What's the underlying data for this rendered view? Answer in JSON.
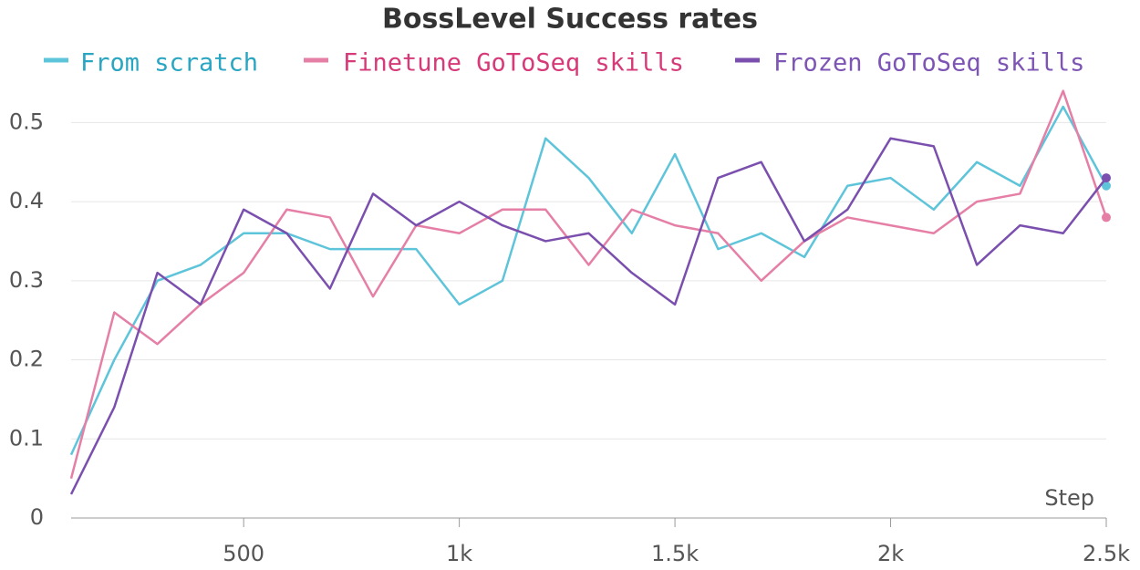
{
  "chart_data": {
    "type": "line",
    "title": "BossLevel Success rates",
    "xlabel": "Step",
    "x": [
      100,
      200,
      300,
      400,
      500,
      600,
      700,
      800,
      900,
      1000,
      1100,
      1200,
      1300,
      1400,
      1500,
      1600,
      1700,
      1800,
      1900,
      2000,
      2100,
      2200,
      2300,
      2400,
      2500
    ],
    "series": [
      {
        "name": "From scratch",
        "color": "#5ec4da",
        "label_color": "#2aa6c2",
        "values": [
          0.08,
          0.2,
          0.3,
          0.32,
          0.36,
          0.36,
          0.34,
          0.34,
          0.34,
          0.27,
          0.3,
          0.48,
          0.43,
          0.36,
          0.46,
          0.34,
          0.36,
          0.33,
          0.42,
          0.43,
          0.39,
          0.45,
          0.42,
          0.52,
          0.42
        ]
      },
      {
        "name": "Finetune GoToSeq skills",
        "color": "#e57fa6",
        "label_color": "#d63a78",
        "values": [
          0.05,
          0.26,
          0.22,
          0.27,
          0.31,
          0.39,
          0.38,
          0.28,
          0.37,
          0.36,
          0.39,
          0.39,
          0.32,
          0.39,
          0.37,
          0.36,
          0.3,
          0.35,
          0.38,
          0.37,
          0.36,
          0.4,
          0.41,
          0.54,
          0.38
        ]
      },
      {
        "name": "Frozen GoToSeq skills",
        "color": "#7a4fae",
        "label_color": "#7d55b4",
        "values": [
          0.03,
          0.14,
          0.31,
          0.27,
          0.39,
          0.36,
          0.29,
          0.41,
          0.37,
          0.4,
          0.37,
          0.35,
          0.36,
          0.31,
          0.27,
          0.43,
          0.45,
          0.35,
          0.39,
          0.48,
          0.47,
          0.32,
          0.37,
          0.36,
          0.43
        ]
      }
    ],
    "xlim": [
      100,
      2500
    ],
    "ylim": [
      0,
      0.55
    ],
    "xticks": [
      500,
      {
        "value": 1000,
        "label": "1k"
      },
      {
        "value": 1500,
        "label": "1.5k"
      },
      {
        "value": 2000,
        "label": "2k"
      },
      {
        "value": 2500,
        "label": "2.5k"
      }
    ],
    "yticks": [
      0,
      0.1,
      0.2,
      0.3,
      0.4,
      0.5
    ],
    "grid": true
  }
}
